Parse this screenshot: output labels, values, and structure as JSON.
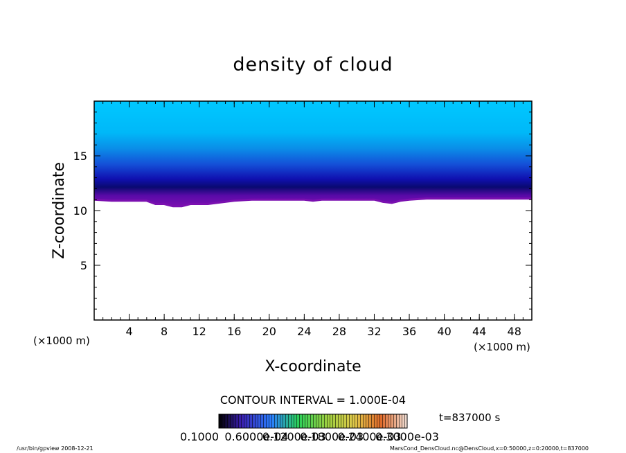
{
  "chart_data": {
    "type": "heatmap",
    "title": "density of cloud",
    "xlabel": "X-coordinate",
    "ylabel": "Z-coordinate",
    "x_unit": "(×1000 m)",
    "y_unit": "(×1000 m)",
    "xlim": [
      0,
      50
    ],
    "ylim": [
      0,
      20
    ],
    "x_ticks": [
      "4",
      "8",
      "12",
      "16",
      "20",
      "24",
      "28",
      "32",
      "36",
      "40",
      "44",
      "48"
    ],
    "y_ticks": [
      "5",
      "10",
      "15"
    ],
    "cloud_base_profile": {
      "x": [
        0,
        2,
        4,
        6,
        7,
        8,
        9,
        10,
        11,
        12,
        13,
        14,
        16,
        18,
        20,
        22,
        24,
        25,
        26,
        28,
        30,
        32,
        33,
        34,
        35,
        36,
        38,
        40,
        42,
        44,
        46,
        48,
        50
      ],
      "z": [
        11.0,
        10.9,
        10.9,
        10.9,
        10.6,
        10.6,
        10.4,
        10.4,
        10.6,
        10.6,
        10.6,
        10.7,
        10.9,
        11.0,
        11.0,
        11.0,
        11.0,
        10.9,
        11.0,
        11.0,
        11.0,
        11.0,
        10.8,
        10.7,
        10.9,
        11.0,
        11.1,
        11.1,
        11.1,
        11.1,
        11.1,
        11.1,
        11.1
      ]
    },
    "contour_interval": "CONTOUR INTERVAL = 1.000E-04",
    "colorbar_labels": [
      "0.1000",
      "0.6000e-04",
      "0.1200e-03",
      "0.1800e-03",
      "0.2400e-03",
      "0.3000e-03"
    ],
    "time_label": "t=837000 s",
    "palette": [
      "#000000",
      "#3b1fb0",
      "#1f5fe0",
      "#2aa0ff",
      "#2ad05a",
      "#9ad03a",
      "#d0c83a",
      "#e07a2a",
      "#d03a3a",
      "#f0f0f0"
    ]
  },
  "footer": {
    "left": "/usr/bin/gpview   2008-12-21",
    "right": "MarsCond_DensCloud.nc@DensCloud,x=0:50000,z=0:20000,t=837000"
  }
}
